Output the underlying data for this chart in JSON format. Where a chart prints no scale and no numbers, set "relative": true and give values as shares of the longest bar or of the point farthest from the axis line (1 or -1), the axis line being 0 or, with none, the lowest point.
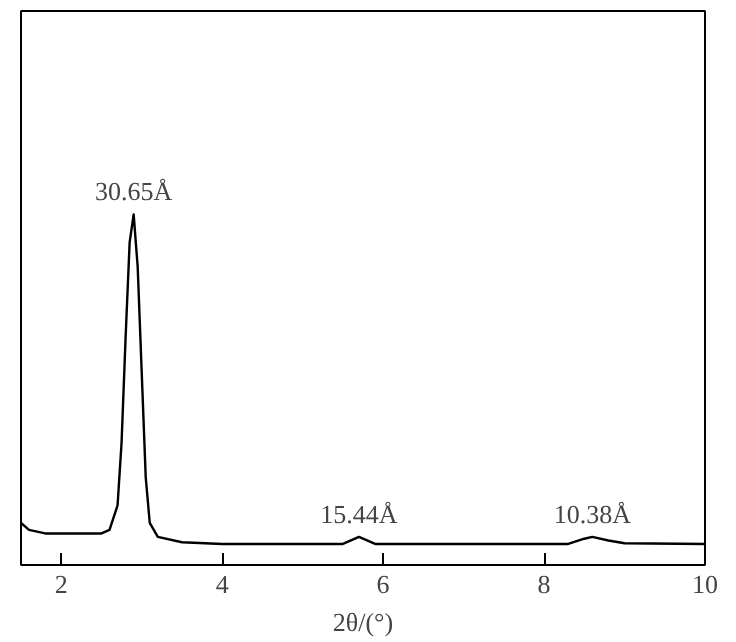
{
  "chart_data": {
    "type": "line",
    "relative": true,
    "xlabel": "2θ/(°)",
    "xlim": [
      1.5,
      10
    ],
    "xticks": [
      2,
      4,
      6,
      8,
      10
    ],
    "grid": false,
    "marker": "none",
    "line_style": "solid",
    "x": [
      1.5,
      1.6,
      1.8,
      2.2,
      2.5,
      2.6,
      2.7,
      2.75,
      2.8,
      2.85,
      2.9,
      2.95,
      3.0,
      3.05,
      3.1,
      3.2,
      3.5,
      4,
      5,
      5.5,
      5.6,
      5.7,
      5.8,
      5.9,
      6.5,
      8,
      8.3,
      8.5,
      8.6,
      8.8,
      9,
      10
    ],
    "series": [
      {
        "color": "#000000",
        "values": [
          0.12,
          0.1,
          0.09,
          0.09,
          0.09,
          0.1,
          0.17,
          0.35,
          0.65,
          0.92,
          1.0,
          0.85,
          0.55,
          0.25,
          0.12,
          0.08,
          0.065,
          0.06,
          0.06,
          0.06,
          0.07,
          0.08,
          0.07,
          0.06,
          0.06,
          0.06,
          0.06,
          0.075,
          0.08,
          0.07,
          0.062,
          0.06
        ]
      }
    ],
    "annotations": [
      {
        "text": "30.65Å",
        "x": 2.9,
        "y": 1.0
      },
      {
        "text": "15.44Å",
        "x": 5.7,
        "y": 0.08
      },
      {
        "text": "10.38Å",
        "x": 8.6,
        "y": 0.08
      }
    ]
  }
}
